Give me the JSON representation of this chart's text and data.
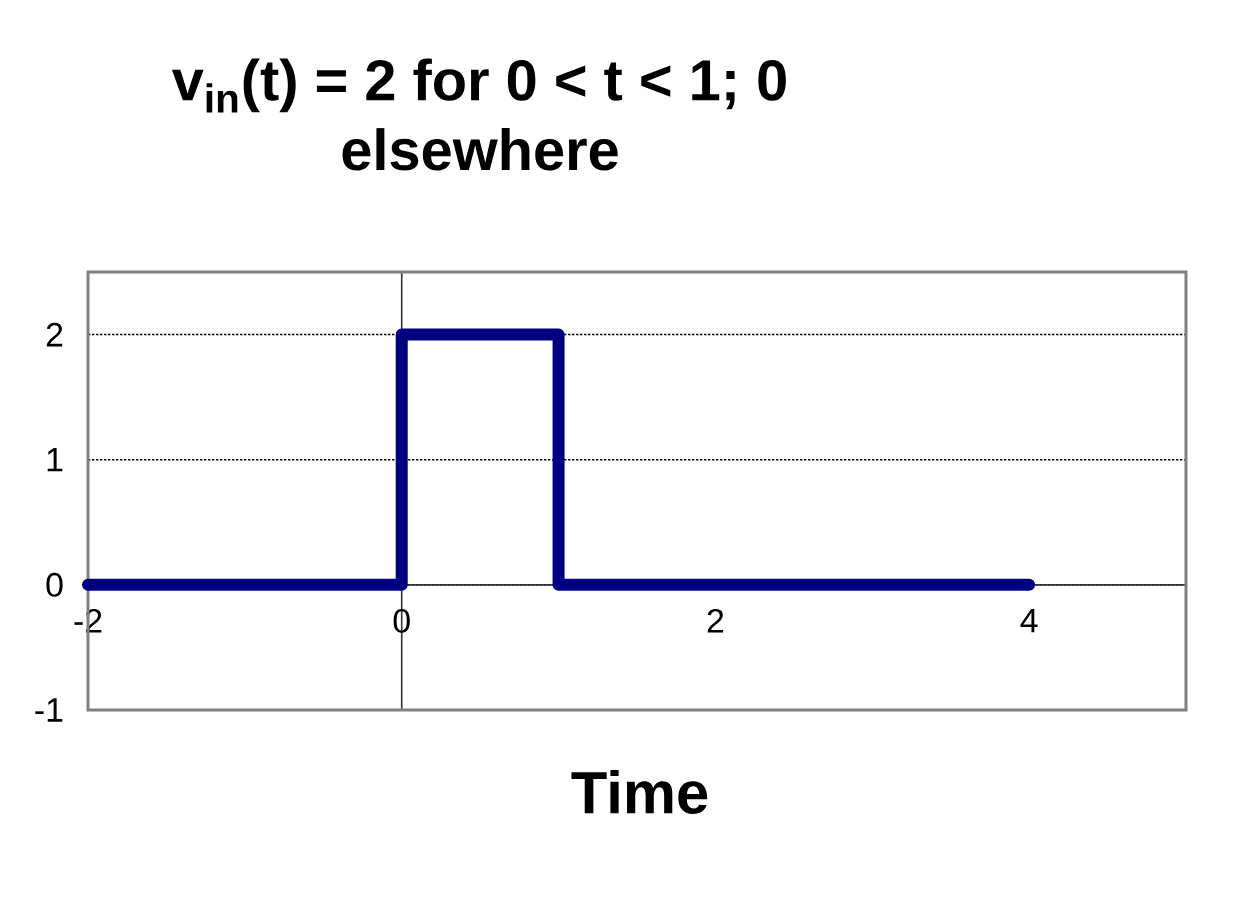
{
  "chart_data": {
    "type": "line",
    "title": "v$_{in}$(t) = 2 for 0 < t < 1; 0 elsewhere",
    "xlabel": "Time",
    "x": [
      -2,
      0,
      0,
      1,
      1,
      4
    ],
    "series": [
      {
        "color": "#000080",
        "values": [
          0,
          0,
          2,
          2,
          0,
          0
        ]
      }
    ],
    "xlim": [
      -2,
      5
    ],
    "ylim": [
      -1,
      2.5
    ],
    "xticks": [
      -2,
      0,
      2,
      4
    ],
    "yticks": [
      -1,
      0,
      1,
      2
    ],
    "grid": "y"
  }
}
